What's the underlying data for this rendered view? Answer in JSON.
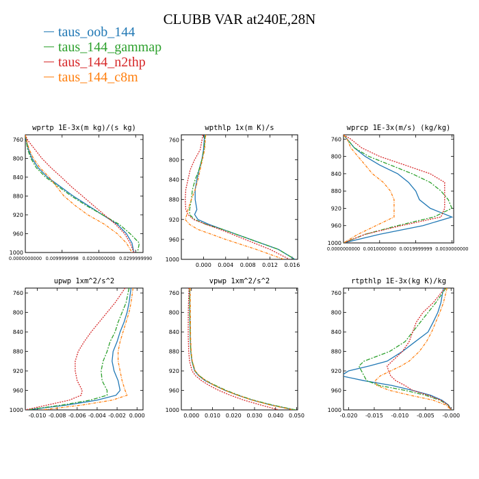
{
  "title": "CLUBB VAR at240E,28N",
  "legend": [
    {
      "name": "taus_oob_144",
      "color": "#1f77b4"
    },
    {
      "name": "taus_144_gammap",
      "color": "#2ca02c"
    },
    {
      "name": "taus_144_n2thp",
      "color": "#d62728"
    },
    {
      "name": "taus_144_c8m",
      "color": "#ff7f0e"
    }
  ],
  "chart_data": [
    {
      "type": "line",
      "title": "wprtp  1E-3x(m kg)/(s kg)",
      "xlim": [
        0.0,
        0.032
      ],
      "ylim": [
        1000,
        750
      ],
      "xticks": [
        0.0,
        0.0099999998,
        0.02,
        0.029999999
      ],
      "xtick_labels": [
        "0.0000000000",
        "0.0099999998",
        "0.0200000000",
        "0.0299999990"
      ],
      "yticks": [
        760,
        800,
        840,
        880,
        920,
        960,
        1000
      ],
      "y": [
        750,
        760,
        780,
        800,
        820,
        840,
        860,
        880,
        900,
        920,
        940,
        960,
        980,
        1000
      ],
      "series": [
        {
          "name": "taus_oob_144",
          "values": [
            0.0,
            0.0002,
            0.0008,
            0.0018,
            0.0035,
            0.006,
            0.0095,
            0.013,
            0.017,
            0.021,
            0.025,
            0.0275,
            0.029,
            0.0295
          ]
        },
        {
          "name": "taus_144_gammap",
          "values": [
            0.0,
            0.0002,
            0.0006,
            0.0015,
            0.003,
            0.0055,
            0.009,
            0.0125,
            0.0165,
            0.021,
            0.0255,
            0.0285,
            0.031,
            0.0305
          ]
        },
        {
          "name": "taus_144_n2thp",
          "values": [
            0.0,
            0.0005,
            0.0025,
            0.0045,
            0.007,
            0.0098,
            0.0125,
            0.0155,
            0.0185,
            0.0215,
            0.0245,
            0.027,
            0.0285,
            0.0295
          ]
        },
        {
          "name": "taus_144_c8m",
          "values": [
            0.0,
            0.0003,
            0.001,
            0.0022,
            0.004,
            0.0065,
            0.0085,
            0.0105,
            0.0135,
            0.017,
            0.0215,
            0.025,
            0.0275,
            0.029
          ]
        }
      ]
    },
    {
      "type": "line",
      "title": "wpthlp  1x(m K)/s",
      "xlim": [
        -0.004,
        0.017
      ],
      "ylim": [
        1000,
        750
      ],
      "xticks": [
        0.0,
        0.004,
        0.008,
        0.012,
        0.016
      ],
      "xtick_labels": [
        "0.000",
        "0.004",
        "0.008",
        "0.012",
        "0.016"
      ],
      "yticks": [
        760,
        800,
        840,
        880,
        920,
        960,
        1000
      ],
      "y": [
        750,
        780,
        800,
        820,
        840,
        860,
        880,
        900,
        910,
        920,
        930,
        940,
        960,
        980,
        1000
      ],
      "series": [
        {
          "name": "taus_oob_144",
          "values": [
            0.0002,
            0.0,
            -0.0003,
            -0.0008,
            -0.0012,
            -0.0015,
            -0.0015,
            -0.0012,
            -0.0016,
            -0.001,
            0.001,
            0.0035,
            0.0085,
            0.0135,
            0.0165
          ]
        },
        {
          "name": "taus_144_gammap",
          "values": [
            0.0003,
            0.0001,
            -0.0003,
            -0.0008,
            -0.0015,
            -0.002,
            -0.0022,
            -0.0025,
            -0.0025,
            -0.0016,
            0.0005,
            0.0035,
            0.0085,
            0.0135,
            0.0165
          ]
        },
        {
          "name": "taus_144_n2thp",
          "values": [
            -0.0001,
            -0.0006,
            -0.0016,
            -0.0024,
            -0.0028,
            -0.0032,
            -0.0033,
            -0.0032,
            -0.0028,
            -0.0018,
            0.0005,
            0.003,
            0.0075,
            0.012,
            0.0155
          ]
        },
        {
          "name": "taus_144_c8m",
          "values": [
            0.0004,
            0.0002,
            -0.0002,
            -0.0006,
            -0.001,
            -0.0015,
            -0.0022,
            -0.0028,
            -0.003,
            -0.0033,
            -0.0025,
            -0.001,
            0.004,
            0.0095,
            0.0145
          ]
        }
      ]
    },
    {
      "type": "line",
      "title": "wprcp  1E-3x(m/s) (kg/kg)",
      "xlim": [
        0.0,
        0.00305
      ],
      "ylim": [
        1000,
        750
      ],
      "xticks": [
        0.0,
        0.001,
        0.0019999999,
        0.003
      ],
      "xtick_labels": [
        "0.0000000000",
        "0.0010000000",
        "0.0019999999",
        "0.0030000000"
      ],
      "yticks": [
        760,
        800,
        840,
        880,
        920,
        960,
        1000
      ],
      "y": [
        750,
        760,
        780,
        800,
        820,
        840,
        860,
        880,
        900,
        920,
        940,
        960,
        980,
        1000
      ],
      "series": [
        {
          "name": "taus_oob_144",
          "values": [
            0.0,
            0.0001,
            0.0003,
            0.0006,
            0.001,
            0.0015,
            0.0018,
            0.002,
            0.0021,
            0.0024,
            0.003,
            0.0022,
            0.001,
            0.0
          ]
        },
        {
          "name": "taus_144_gammap",
          "values": [
            0.0,
            0.0001,
            0.0003,
            0.0007,
            0.0013,
            0.0019,
            0.0024,
            0.0027,
            0.0029,
            0.003,
            0.0025,
            0.0015,
            0.0006,
            0.0
          ]
        },
        {
          "name": "taus_144_n2thp",
          "values": [
            0.0,
            0.0002,
            0.0005,
            0.001,
            0.0017,
            0.0024,
            0.0028,
            0.0028,
            0.0028,
            0.0028,
            0.0027,
            0.0016,
            0.0006,
            0.0
          ]
        },
        {
          "name": "taus_144_c8m",
          "values": [
            0.0,
            0.0001,
            0.0002,
            0.0004,
            0.0006,
            0.0008,
            0.0011,
            0.0013,
            0.0014,
            0.0014,
            0.0014,
            0.0009,
            0.0004,
            0.0
          ]
        }
      ]
    },
    {
      "type": "line",
      "title": "upwp  1xm^2/s^2",
      "xlim": [
        -0.0112,
        0.0006
      ],
      "ylim": [
        1000,
        750
      ],
      "xticks": [
        -0.01,
        -0.008,
        -0.006,
        -0.004,
        -0.002,
        0.0
      ],
      "xtick_labels": [
        "-0.010",
        "-0.008",
        "-0.006",
        "-0.004",
        "-0.002",
        "0.000"
      ],
      "yticks": [
        760,
        800,
        840,
        880,
        920,
        960,
        1000
      ],
      "y": [
        750,
        780,
        800,
        820,
        840,
        860,
        880,
        900,
        920,
        940,
        960,
        970,
        980,
        990,
        1000
      ],
      "series": [
        {
          "name": "taus_oob_144",
          "values": [
            -0.0006,
            -0.0008,
            -0.001,
            -0.0013,
            -0.0017,
            -0.002,
            -0.0024,
            -0.0025,
            -0.0023,
            -0.0019,
            -0.0017,
            -0.0021,
            -0.004,
            -0.007,
            -0.011
          ]
        },
        {
          "name": "taus_144_gammap",
          "values": [
            -0.0008,
            -0.0011,
            -0.0015,
            -0.0019,
            -0.0022,
            -0.0027,
            -0.003,
            -0.0034,
            -0.0036,
            -0.0035,
            -0.003,
            -0.003,
            -0.0047,
            -0.0075,
            -0.011
          ]
        },
        {
          "name": "taus_144_n2thp",
          "values": [
            -0.0012,
            -0.0022,
            -0.003,
            -0.0038,
            -0.0046,
            -0.0053,
            -0.0059,
            -0.0062,
            -0.0062,
            -0.006,
            -0.0055,
            -0.0056,
            -0.0068,
            -0.009,
            -0.0112
          ]
        },
        {
          "name": "taus_144_c8m",
          "values": [
            -0.0004,
            -0.0006,
            -0.0008,
            -0.0011,
            -0.0014,
            -0.0017,
            -0.0019,
            -0.0019,
            -0.0017,
            -0.0015,
            -0.0012,
            -0.001,
            -0.0025,
            -0.0055,
            -0.0095
          ]
        }
      ]
    },
    {
      "type": "line",
      "title": "vpwp  1xm^2/s^2",
      "xlim": [
        -0.0048,
        0.0505
      ],
      "ylim": [
        1000,
        750
      ],
      "xticks": [
        0.0,
        0.01,
        0.02,
        0.03,
        0.04,
        0.05
      ],
      "xtick_labels": [
        "0.000",
        "0.010",
        "0.020",
        "0.030",
        "0.040",
        "0.050"
      ],
      "yticks": [
        760,
        800,
        840,
        880,
        920,
        960,
        1000
      ],
      "y": [
        750,
        800,
        850,
        880,
        900,
        920,
        930,
        940,
        950,
        960,
        970,
        980,
        990,
        1000
      ],
      "series": [
        {
          "name": "taus_oob_144",
          "values": [
            -0.0008,
            -0.0008,
            -0.0006,
            -0.0003,
            0.0002,
            0.0015,
            0.0035,
            0.0065,
            0.011,
            0.016,
            0.022,
            0.029,
            0.038,
            0.049
          ]
        },
        {
          "name": "taus_144_gammap",
          "values": [
            -0.0008,
            -0.0008,
            -0.0006,
            -0.0003,
            0.0003,
            0.0017,
            0.0038,
            0.007,
            0.0115,
            0.0165,
            0.0225,
            0.0295,
            0.0385,
            0.0495
          ]
        },
        {
          "name": "taus_144_n2thp",
          "values": [
            -0.0012,
            -0.0015,
            -0.0015,
            -0.0013,
            -0.0009,
            0.0003,
            0.002,
            0.0048,
            0.0085,
            0.013,
            0.0185,
            0.025,
            0.033,
            0.0415
          ]
        },
        {
          "name": "taus_144_c8m",
          "values": [
            -0.0006,
            -0.0005,
            -0.0004,
            -0.0001,
            0.0004,
            0.0018,
            0.0038,
            0.0068,
            0.011,
            0.016,
            0.022,
            0.029,
            0.0375,
            0.0485
          ]
        }
      ]
    },
    {
      "type": "line",
      "title": "rtpthlp  1E-3x(kg K)/kg",
      "xlim": [
        -0.021,
        0.0005
      ],
      "ylim": [
        1000,
        750
      ],
      "xticks": [
        -0.02,
        -0.015,
        -0.01,
        -0.005,
        0.0
      ],
      "xtick_labels": [
        "-0.020",
        "-0.015",
        "-0.010",
        "-0.005",
        "-0.000"
      ],
      "yticks": [
        760,
        800,
        840,
        880,
        920,
        960,
        1000
      ],
      "y": [
        750,
        780,
        800,
        820,
        840,
        860,
        880,
        900,
        910,
        920,
        930,
        940,
        950,
        960,
        970,
        980,
        990,
        1000
      ],
      "series": [
        {
          "name": "taus_oob_144",
          "values": [
            -0.0015,
            -0.002,
            -0.0026,
            -0.0035,
            -0.0045,
            -0.007,
            -0.0095,
            -0.0125,
            -0.016,
            -0.02,
            -0.0215,
            -0.017,
            -0.0115,
            -0.0075,
            -0.004,
            -0.0018,
            -0.0005,
            0.0
          ]
        },
        {
          "name": "taus_144_gammap",
          "values": [
            -0.001,
            -0.003,
            -0.0045,
            -0.006,
            -0.0075,
            -0.009,
            -0.012,
            -0.017,
            -0.018,
            -0.0175,
            -0.017,
            -0.0165,
            -0.014,
            -0.009,
            -0.005,
            -0.0022,
            -0.0006,
            0.0
          ]
        },
        {
          "name": "taus_144_n2thp",
          "values": [
            -0.0012,
            -0.0035,
            -0.0055,
            -0.0068,
            -0.0075,
            -0.0082,
            -0.0095,
            -0.0115,
            -0.0125,
            -0.0122,
            -0.0118,
            -0.0108,
            -0.009,
            -0.0075,
            -0.0045,
            -0.002,
            -0.0006,
            0.0
          ]
        },
        {
          "name": "taus_144_c8m",
          "values": [
            -0.0008,
            -0.0015,
            -0.0022,
            -0.003,
            -0.0038,
            -0.0048,
            -0.0062,
            -0.0082,
            -0.0098,
            -0.0118,
            -0.0138,
            -0.0148,
            -0.0145,
            -0.012,
            -0.008,
            -0.0035,
            -0.001,
            0.0
          ]
        }
      ]
    }
  ]
}
